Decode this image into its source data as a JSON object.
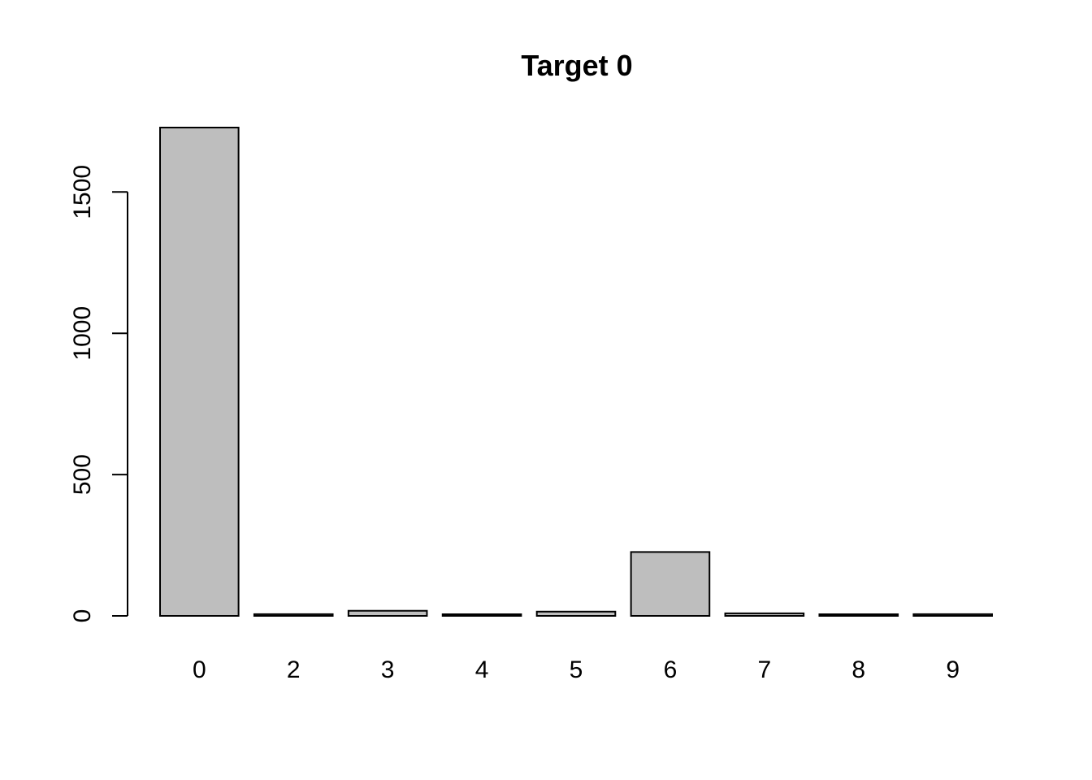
{
  "chart_data": {
    "type": "bar",
    "title": "Target 0",
    "xlabel": "",
    "ylabel": "",
    "categories": [
      "0",
      "2",
      "3",
      "4",
      "5",
      "6",
      "7",
      "8",
      "9"
    ],
    "values": [
      1728,
      6,
      18,
      3,
      15,
      226,
      9,
      3,
      6
    ],
    "ylim": [
      0,
      1728
    ],
    "yticks": [
      0,
      500,
      1000,
      1500
    ],
    "ytick_labels": [
      "0",
      "500",
      "1000",
      "1500"
    ],
    "grid": false,
    "legend": "none",
    "colors": {
      "bar_fill": "#bebebe",
      "bar_stroke": "#000000",
      "axis": "#000000",
      "background": "#ffffff"
    }
  }
}
